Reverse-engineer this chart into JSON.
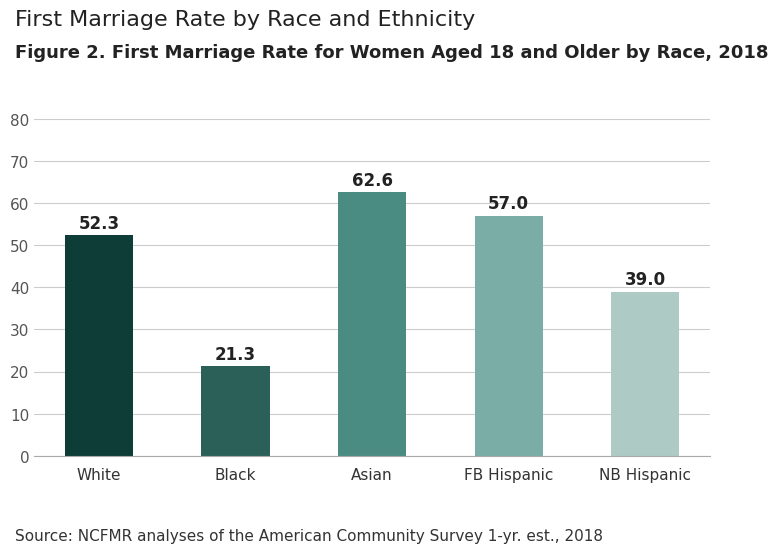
{
  "title": "First Marriage Rate by Race and Ethnicity",
  "subtitle": "Figure 2. First Marriage Rate for Women Aged 18 and Older by Race, 2018",
  "source": "Source: NCFMR analyses of the American Community Survey 1-yr. est., 2018",
  "categories": [
    "White",
    "Black",
    "Asian",
    "FB Hispanic",
    "NB Hispanic"
  ],
  "values": [
    52.3,
    21.3,
    62.6,
    57.0,
    39.0
  ],
  "bar_colors": [
    "#0d3d36",
    "#2a6057",
    "#4a8c82",
    "#7aada6",
    "#aecac5"
  ],
  "ylim": [
    0,
    80
  ],
  "yticks": [
    0,
    10,
    20,
    30,
    40,
    50,
    60,
    70,
    80
  ],
  "title_fontsize": 16,
  "subtitle_fontsize": 13,
  "source_fontsize": 11,
  "label_fontsize": 12,
  "tick_fontsize": 11,
  "background_color": "#ffffff",
  "title_color": "#222222",
  "subtitle_color": "#222222",
  "source_color": "#333333",
  "label_color": "#222222",
  "grid_color": "#cccccc",
  "spine_color": "#aaaaaa"
}
